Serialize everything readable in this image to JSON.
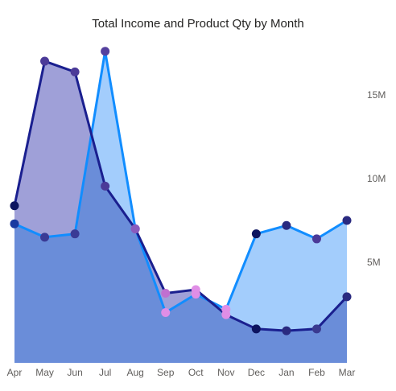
{
  "chart_data": {
    "type": "area",
    "title": "Total Income and Product Qty by Month",
    "categories": [
      "Apr",
      "May",
      "Jun",
      "Jul",
      "Aug",
      "Sep",
      "Oct",
      "Nov",
      "Dec",
      "Jan",
      "Feb",
      "Mar"
    ],
    "series": [
      {
        "axis": "left-unlabeled",
        "values": [
          7.8,
          15.9,
          15.3,
          8.9,
          6.5,
          2.9,
          3.1,
          1.7,
          0.9,
          0.8,
          0.9,
          2.7
        ],
        "line_color": "#1a1f8f",
        "fill_color": "#9fa0d8",
        "marker_colors": [
          "#0d1460",
          "#4b3a98",
          "#4b3a98",
          "#4b3a98",
          "#8a5bbd",
          "#c070d0",
          "#e08ee6",
          "#e08ee6",
          "#0d1460",
          "#2a2a80",
          "#3a3a90",
          "#2a2a80"
        ]
      },
      {
        "axis": "right",
        "values": [
          7.3,
          6.5,
          6.7,
          17.6,
          7.0,
          2.0,
          3.1,
          2.2,
          6.7,
          7.2,
          6.4,
          7.5
        ],
        "line_color": "#118dff",
        "fill_color": "#a3cdfc",
        "marker_colors": [
          "#1a3aa0",
          "#3a3a95",
          "#3a3a95",
          "#54409e",
          "#8a5bbd",
          "#e08ee6",
          "#e08ee6",
          "#e08ee6",
          "#0d1460",
          "#2a2a80",
          "#4b3a98",
          "#2a2a80"
        ]
      }
    ],
    "overlap_fill_color": "#6a8dd9",
    "y_right": {
      "ticks": [
        5,
        10,
        15
      ],
      "tick_labels": [
        "5M",
        "10M",
        "15M"
      ],
      "range": [
        -1,
        18.5
      ]
    },
    "y_left": {
      "range": [
        -1,
        17.3
      ]
    },
    "grid": false,
    "legend": "none"
  }
}
